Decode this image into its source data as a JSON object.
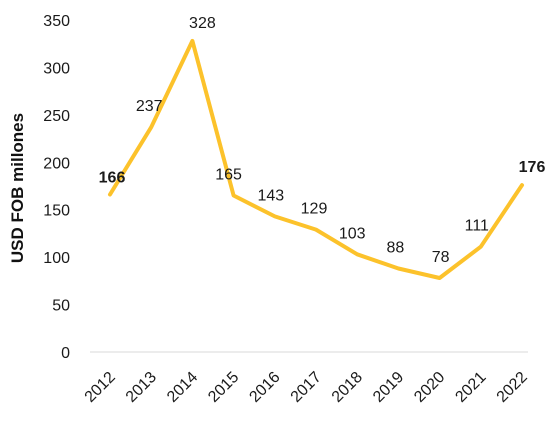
{
  "chart_data": {
    "type": "line",
    "ylabel": "USD FOB millones",
    "xlabel": "",
    "title": "",
    "ylim": [
      0,
      350
    ],
    "yticks": [
      0,
      50,
      100,
      150,
      200,
      250,
      300,
      350
    ],
    "categories": [
      "2012",
      "2013",
      "2014",
      "2015",
      "2016",
      "2017",
      "2018",
      "2019",
      "2020",
      "2021",
      "2022"
    ],
    "series": [
      {
        "values": [
          166,
          237,
          328,
          165,
          143,
          129,
          103,
          88,
          78,
          111,
          176
        ],
        "labels": [
          "166",
          "237",
          "328",
          "165",
          "143",
          "129",
          "103",
          "88",
          "78",
          "111",
          "176"
        ],
        "bold_labels": [
          "2012",
          "2022"
        ],
        "color": "#FCC22B"
      }
    ],
    "grid": false,
    "legend": "none"
  }
}
